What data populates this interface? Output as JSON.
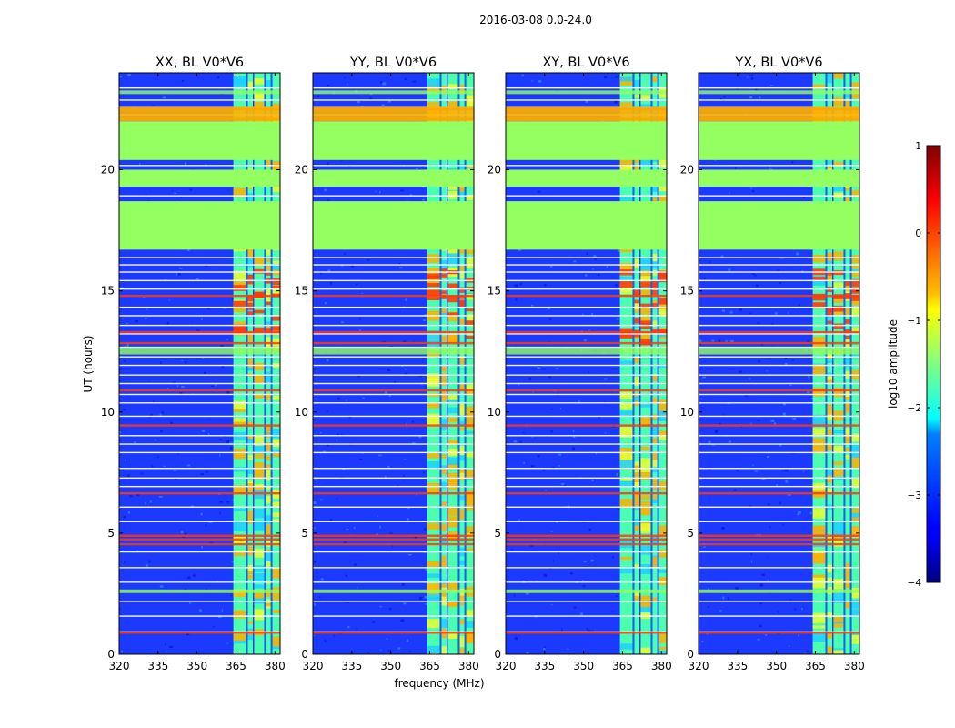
{
  "figure_title": "2016-03-08 0.0-24.0",
  "chart_data": {
    "type": "heatmap",
    "xlabel": "frequency (MHz)",
    "ylabel": "UT (hours)",
    "xlim": [
      320,
      382
    ],
    "ylim": [
      0,
      24
    ],
    "xticks": [
      320,
      335,
      350,
      365,
      380
    ],
    "yticks": [
      0,
      5,
      10,
      15,
      20
    ],
    "panels": [
      {
        "title": "XX, BL V0*V6"
      },
      {
        "title": "YY, BL V0*V6"
      },
      {
        "title": "XY, BL V0*V6"
      },
      {
        "title": "YX, BL V0*V6"
      }
    ],
    "flagged_bands_hours": [
      [
        16.7,
        18.7
      ],
      [
        19.3,
        20.0
      ],
      [
        20.4,
        22.0
      ]
    ],
    "rfi_bands_mhz": [
      [
        364,
        369
      ],
      [
        369.5,
        371.5
      ],
      [
        372,
        376
      ],
      [
        376.5,
        378.5
      ],
      [
        379,
        382
      ]
    ],
    "colorbar": {
      "label": "log10 amplitude",
      "range": [
        -4,
        1
      ],
      "ticks": [
        {
          "value": 1,
          "label": "1"
        },
        {
          "value": 0,
          "label": "0"
        },
        {
          "value": -1,
          "label": "−1"
        },
        {
          "value": -2,
          "label": "−2"
        },
        {
          "value": -3,
          "label": "−3"
        },
        {
          "value": -4,
          "label": "−4"
        }
      ],
      "colormap": "jet"
    },
    "colors": {
      "background": "#1c3aff",
      "flagged": "#94ff60",
      "rfi": "#4cffb0",
      "hot": "#ff3a0a",
      "warm": "#ffb000",
      "line": "#ffffff"
    }
  }
}
